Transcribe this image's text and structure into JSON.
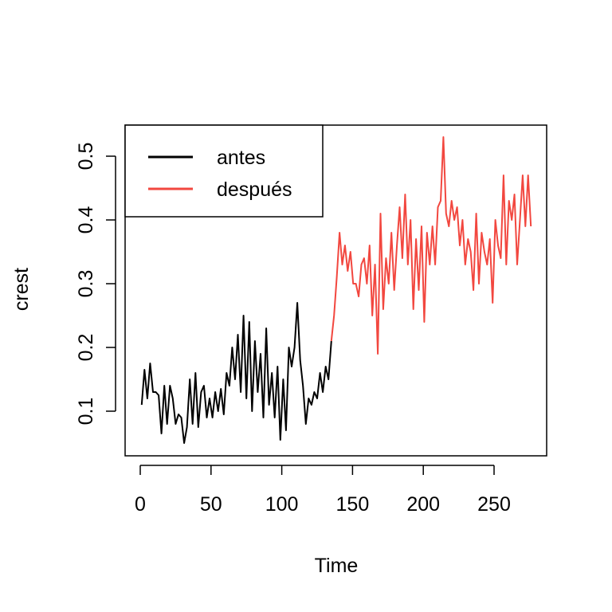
{
  "chart_data": {
    "type": "line",
    "title": "",
    "xlabel": "Time",
    "ylabel": "crest",
    "xlim": [
      -10,
      286
    ],
    "ylim": [
      0.03,
      0.55
    ],
    "x_ticks": [
      0,
      50,
      100,
      150,
      200,
      250
    ],
    "y_ticks": [
      0.1,
      0.2,
      0.3,
      0.4,
      0.5
    ],
    "x_tick_labels": [
      "0",
      "50",
      "100",
      "150",
      "200",
      "250"
    ],
    "y_tick_labels": [
      "0.1",
      "0.2",
      "0.3",
      "0.4",
      "0.5"
    ],
    "legend": {
      "placement": "top-left",
      "entries": [
        {
          "label": "antes",
          "color": "#000000"
        },
        {
          "label": "después",
          "color": "#F2473F"
        }
      ]
    },
    "series": [
      {
        "name": "antes",
        "color": "#000000",
        "x_start": 1,
        "x_end": 135,
        "values": [
          0.11,
          0.165,
          0.12,
          0.175,
          0.13,
          0.13,
          0.125,
          0.065,
          0.14,
          0.08,
          0.14,
          0.12,
          0.08,
          0.095,
          0.09,
          0.05,
          0.075,
          0.15,
          0.08,
          0.16,
          0.075,
          0.13,
          0.14,
          0.09,
          0.12,
          0.09,
          0.13,
          0.1,
          0.135,
          0.095,
          0.16,
          0.14,
          0.2,
          0.15,
          0.22,
          0.13,
          0.25,
          0.12,
          0.24,
          0.1,
          0.21,
          0.13,
          0.19,
          0.09,
          0.23,
          0.11,
          0.16,
          0.09,
          0.17,
          0.055,
          0.15,
          0.07,
          0.2,
          0.17,
          0.2,
          0.27,
          0.18,
          0.14,
          0.08,
          0.12,
          0.11,
          0.13,
          0.12,
          0.16,
          0.13,
          0.17,
          0.15,
          0.21
        ]
      },
      {
        "name": "después",
        "color": "#F2473F",
        "x_start": 135,
        "x_end": 276,
        "values": [
          0.21,
          0.25,
          0.31,
          0.38,
          0.33,
          0.36,
          0.32,
          0.35,
          0.3,
          0.3,
          0.28,
          0.33,
          0.34,
          0.3,
          0.36,
          0.25,
          0.33,
          0.19,
          0.41,
          0.26,
          0.34,
          0.3,
          0.38,
          0.29,
          0.36,
          0.42,
          0.34,
          0.44,
          0.33,
          0.4,
          0.26,
          0.37,
          0.29,
          0.39,
          0.24,
          0.38,
          0.33,
          0.39,
          0.33,
          0.42,
          0.43,
          0.53,
          0.41,
          0.39,
          0.43,
          0.4,
          0.42,
          0.36,
          0.4,
          0.33,
          0.37,
          0.35,
          0.29,
          0.41,
          0.3,
          0.38,
          0.35,
          0.33,
          0.37,
          0.27,
          0.4,
          0.36,
          0.34,
          0.47,
          0.33,
          0.43,
          0.4,
          0.44,
          0.33,
          0.4,
          0.47,
          0.39,
          0.47,
          0.39
        ]
      }
    ]
  }
}
